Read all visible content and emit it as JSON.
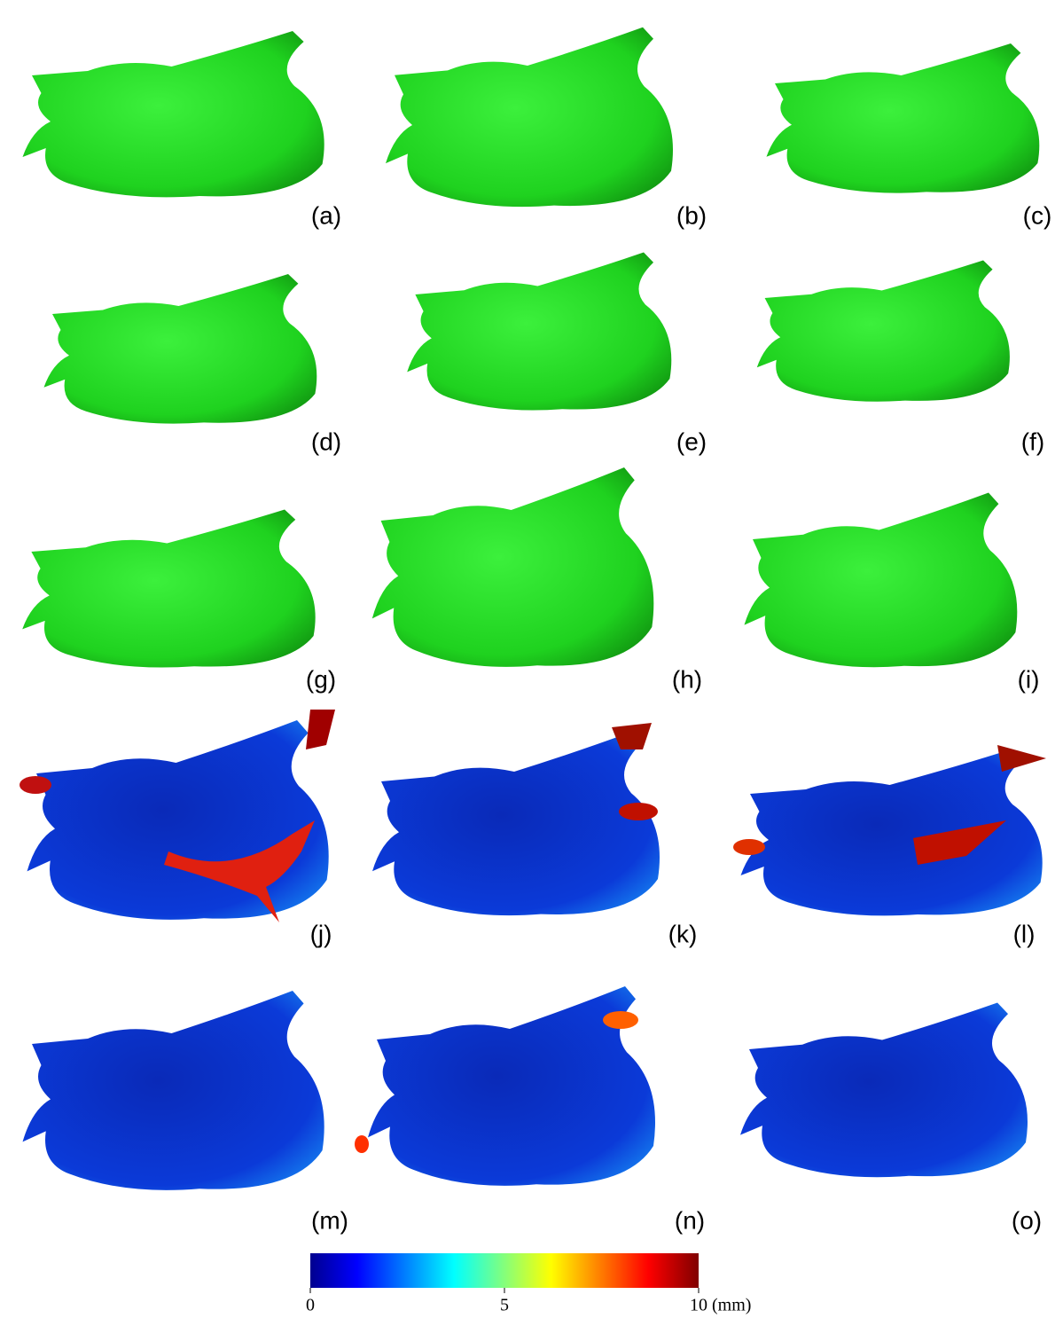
{
  "panel_labels": [
    "(a)",
    "(b)",
    "(c)",
    "(d)",
    "(e)",
    "(f)",
    "(g)",
    "(h)",
    "(i)",
    "(j)",
    "(k)",
    "(l)",
    "(m)",
    "(n)",
    "(o)"
  ],
  "colorbar": {
    "range": [
      0,
      10
    ],
    "ticks": [
      0,
      5,
      10
    ],
    "unit": "(mm)"
  }
}
